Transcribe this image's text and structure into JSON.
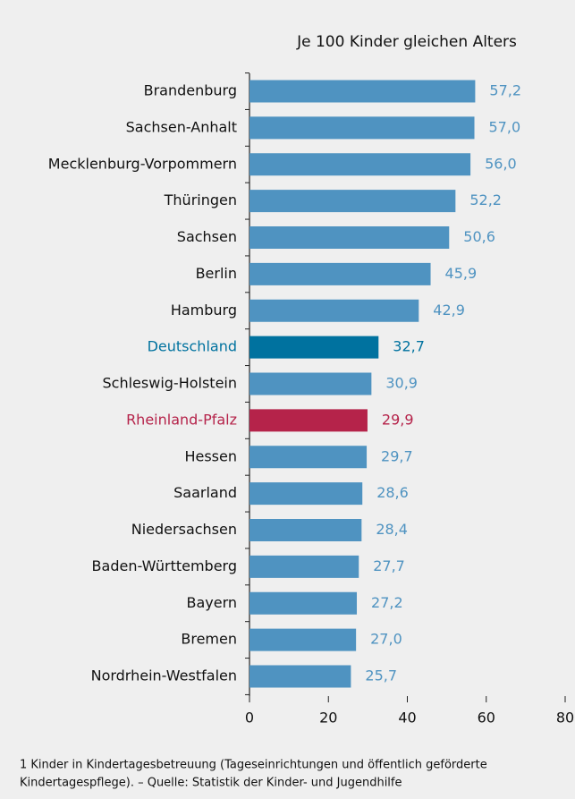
{
  "chart_data": {
    "type": "bar",
    "orientation": "horizontal",
    "axis_label": "Je 100 Kinder gleichen Alters",
    "categories": [
      "Brandenburg",
      "Sachsen-Anhalt",
      "Mecklenburg-Vorpommern",
      "Thüringen",
      "Sachsen",
      "Berlin",
      "Hamburg",
      "Deutschland",
      "Schleswig-Holstein",
      "Rheinland-Pfalz",
      "Hessen",
      "Saarland",
      "Niedersachsen",
      "Baden-Württemberg",
      "Bayern",
      "Bremen",
      "Nordrhein-Westfalen"
    ],
    "values": [
      57.2,
      57.0,
      56.0,
      52.2,
      50.6,
      45.9,
      42.9,
      32.7,
      30.9,
      29.9,
      29.7,
      28.6,
      28.4,
      27.7,
      27.2,
      27.0,
      25.7
    ],
    "value_labels": [
      "57,2",
      "57,0",
      "56,0",
      "52,2",
      "50,6",
      "45,9",
      "42,9",
      "32,7",
      "30,9",
      "29,9",
      "29,7",
      "28,6",
      "28,4",
      "27,7",
      "27,2",
      "27,0",
      "25,7"
    ],
    "color": "#4f93c1",
    "colors": [
      "#4f93c1",
      "#4f93c1",
      "#4f93c1",
      "#4f93c1",
      "#4f93c1",
      "#4f93c1",
      "#4f93c1",
      "#00729f",
      "#4f93c1",
      "#b5234a",
      "#4f93c1",
      "#4f93c1",
      "#4f93c1",
      "#4f93c1",
      "#4f93c1",
      "#4f93c1",
      "#4f93c1"
    ],
    "xlim": [
      0,
      80
    ],
    "xticks": [
      0,
      20,
      40,
      60,
      80
    ],
    "footnote": [
      "1 Kinder in Kindertagesbetreuung (Tageseinrichtungen und öffentlich geförderte",
      "Kindertagespflege). – Quelle: Statistik der Kinder- und Jugendhilfe"
    ]
  }
}
